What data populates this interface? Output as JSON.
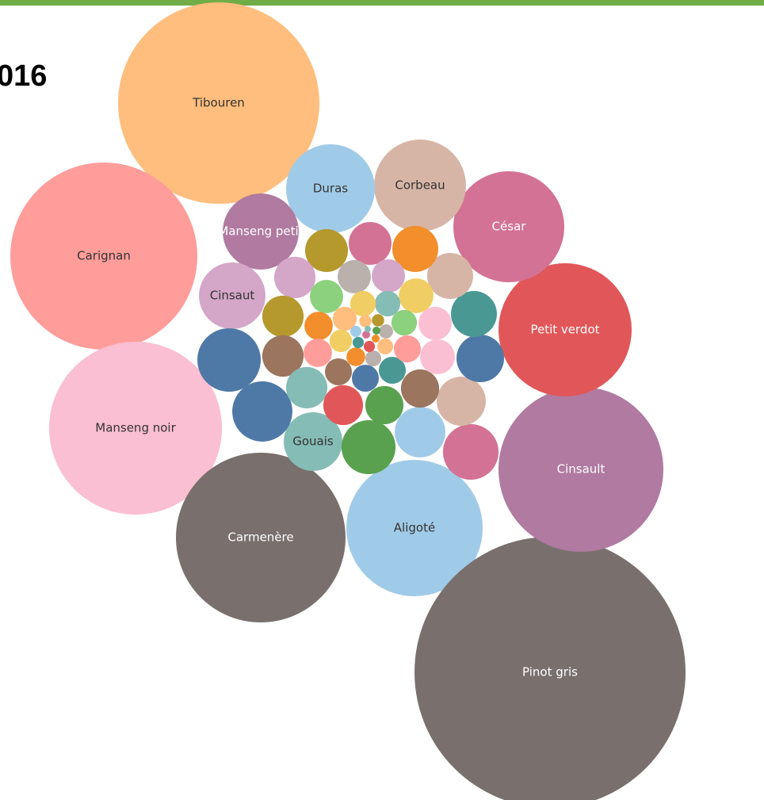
{
  "chart_data": {
    "type": "bubble",
    "title": "016",
    "categories": [
      "Tibouren",
      "Carignan",
      "Manseng noir",
      "Carmenère",
      "Aligoté",
      "Pinot gris",
      "Cinsault",
      "Petit verdot",
      "César",
      "Corbeau",
      "Duras",
      "Manseng petit",
      "Cinsaut",
      "Gouais",
      null,
      null,
      null,
      null,
      null,
      null,
      null,
      null,
      null,
      null,
      null,
      null,
      null,
      null,
      null,
      null,
      null,
      null,
      null,
      null,
      null,
      null,
      null,
      null,
      null,
      null,
      null,
      null,
      null,
      null,
      null,
      null,
      null,
      null,
      null,
      null,
      null,
      null,
      null,
      null,
      null,
      null,
      null,
      null,
      null,
      null,
      null,
      null,
      null
    ],
    "values": [
      1613,
      1392,
      1188,
      1145,
      740,
      2924,
      1082,
      706,
      490,
      336,
      314,
      230,
      176,
      137,
      160,
      144,
      116,
      102,
      123,
      96,
      90,
      84,
      84,
      84,
      73,
      73,
      68,
      68,
      68,
      68,
      63,
      58,
      58,
      48,
      44,
      48,
      44,
      44,
      44,
      32,
      32,
      29,
      29,
      29,
      29,
      26,
      26,
      26,
      23,
      20,
      14,
      10,
      10,
      8,
      6,
      6,
      5,
      5,
      5,
      2.5,
      2.5,
      2.5,
      1.6
    ],
    "colors": [
      "#ffbe7d",
      "#ff9d9a",
      "#fabfd2",
      "#79706e",
      "#a0cbe8",
      "#79706e",
      "#b07aa1",
      "#e15759",
      "#d37295",
      "#d7b5a6",
      "#a0cbe8",
      "#b07aa1",
      "#d4a6c8",
      "#86bcb6",
      "#4e79a7",
      "#4e79a7",
      "#59a14f",
      "#a0cbe8",
      "#d37295",
      "#d7b5a6",
      "#4e79a7",
      "#499894",
      "#d7b5a6",
      "#f28e2b",
      "#d37295",
      "#b6992d",
      "#d4a6c8",
      "#b6992d",
      "#9c755f",
      "#86bcb6",
      "#e15759",
      "#59a14f",
      "#9c755f",
      "#fabfd2",
      "#fabfd2",
      "#f1ce63",
      "#d4a6c8",
      "#bab0ac",
      "#8cd17d",
      "#f28e2b",
      "#ff9d9a",
      "#9c755f",
      "#4e79a7",
      "#499894",
      "#ff9d9a",
      "#8cd17d",
      "#86bcb6",
      "#f1ce63",
      "#ffbe7d",
      "#f1ce63",
      "#f28e2b",
      "#bab0ac",
      "#ffbe7d",
      "#bab0ac",
      "#b6992d",
      "#ffbe7d",
      "#a0cbe8",
      "#499894",
      "#e15759",
      "#f28e2b",
      "#59a14f",
      "#d37295",
      "#86bcb6"
    ]
  }
}
